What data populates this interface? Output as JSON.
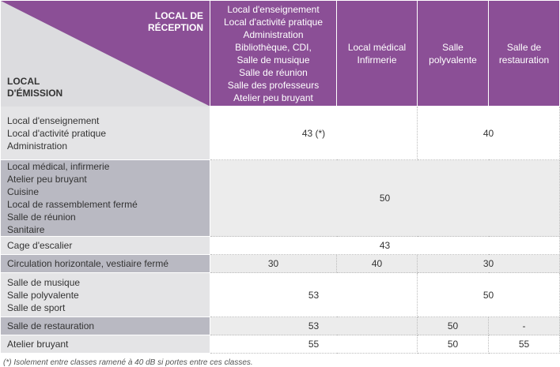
{
  "header": {
    "reception": [
      "LOCAL DE",
      "RÉCEPTION"
    ],
    "emission": [
      "LOCAL",
      "D'ÉMISSION"
    ],
    "columns": [
      [
        "Local d'enseignement",
        "Local d'activité pratique",
        "Administration",
        "Bibliothèque, CDI,",
        "Salle de musique",
        "Salle de réunion",
        "Salle des professeurs",
        "Atelier peu bruyant"
      ],
      [
        "Local médical",
        "Infirmerie"
      ],
      [
        "Salle",
        "polyvalente"
      ],
      [
        "Salle de",
        "restauration"
      ]
    ]
  },
  "table": {
    "rows": [
      {
        "label": [
          "Local d'enseignement",
          "Local d'activité pratique",
          "Administration"
        ],
        "values": [
          "43 (*)",
          40
        ]
      },
      {
        "label": [
          "Local médical, infirmerie",
          "Atelier peu bruyant",
          "Cuisine",
          "Local de rassemblement fermé",
          "Salle de réunion",
          "Sanitaire"
        ],
        "values": [
          50
        ]
      },
      {
        "label": [
          "Cage d'escalier"
        ],
        "values": [
          43
        ]
      },
      {
        "label": [
          "Circulation horizontale, vestiaire fermé"
        ],
        "values": [
          30,
          40,
          30
        ]
      },
      {
        "label": [
          "Salle de musique",
          "Salle polyvalente",
          "Salle de sport"
        ],
        "values": [
          53,
          50
        ]
      },
      {
        "label": [
          "Salle de restauration"
        ],
        "values": [
          53,
          50,
          "-"
        ]
      },
      {
        "label": [
          "Atelier bruyant"
        ],
        "values": [
          55,
          50,
          55
        ]
      }
    ]
  },
  "footnote": "(*) Isolement entre classes ramené à 40 dB si portes entre ces classes."
}
